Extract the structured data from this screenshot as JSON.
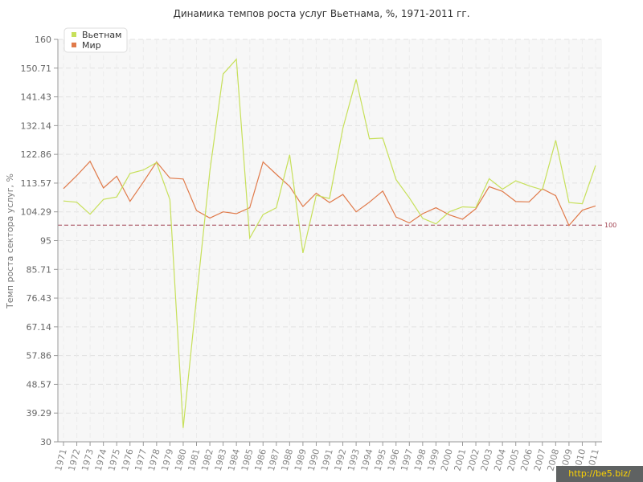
{
  "chart_data": {
    "type": "line",
    "title": "Динамика темпов роста услуг Вьетнама, %, 1971-2011 гг.",
    "ylabel": "Темп роста сектора услуг, %",
    "xlabel": "",
    "ylim": [
      30,
      160
    ],
    "yticks": [
      "30",
      "39.29",
      "48.57",
      "57.86",
      "67.14",
      "76.43",
      "85.71",
      "95",
      "104.29",
      "113.57",
      "122.86",
      "132.14",
      "141.43",
      "150.71",
      "160"
    ],
    "categories": [
      "1971",
      "1972",
      "1973",
      "1974",
      "1975",
      "1976",
      "1977",
      "1978",
      "1979",
      "1980",
      "1981",
      "1982",
      "1983",
      "1984",
      "1985",
      "1986",
      "1987",
      "1988",
      "1989",
      "1990",
      "1991",
      "1992",
      "1993",
      "1994",
      "1995",
      "1996",
      "1997",
      "1998",
      "1999",
      "2000",
      "2001",
      "2002",
      "2003",
      "2004",
      "2005",
      "2006",
      "2007",
      "2008",
      "2009",
      "2010",
      "2011"
    ],
    "series": [
      {
        "name": "Вьетнам",
        "color": "#c7e05a",
        "values": [
          107.8,
          107.4,
          103.5,
          108.3,
          109.1,
          116.7,
          117.8,
          120.2,
          108.2,
          34.5,
          76.5,
          117.5,
          148.8,
          153.6,
          95.8,
          103.4,
          105.6,
          122.7,
          91.0,
          109.6,
          108.6,
          131.3,
          147.1,
          127.9,
          128.1,
          114.7,
          108.8,
          102.2,
          100.4,
          104.3,
          105.9,
          105.7,
          115.0,
          111.6,
          114.3,
          112.7,
          111.4,
          127.4,
          107.3,
          106.9,
          119.3
        ]
      },
      {
        "name": "Мир",
        "color": "#e07a4a",
        "values": [
          111.8,
          116.0,
          120.6,
          112.0,
          115.8,
          107.7,
          113.9,
          120.4,
          115.2,
          114.9,
          104.7,
          102.3,
          104.3,
          103.7,
          105.6,
          120.4,
          116.4,
          112.5,
          106.0,
          110.3,
          107.3,
          109.9,
          104.3,
          107.4,
          111.0,
          102.6,
          100.7,
          103.7,
          105.6,
          103.3,
          101.9,
          105.3,
          112.4,
          110.9,
          107.6,
          107.5,
          111.7,
          109.5,
          99.9,
          104.8,
          106.2
        ]
      }
    ],
    "reference_line": {
      "value": 100,
      "label": "100",
      "color": "#a04050"
    },
    "legend_position": "top-left",
    "grid": true
  },
  "watermark": "http://be5.biz/"
}
